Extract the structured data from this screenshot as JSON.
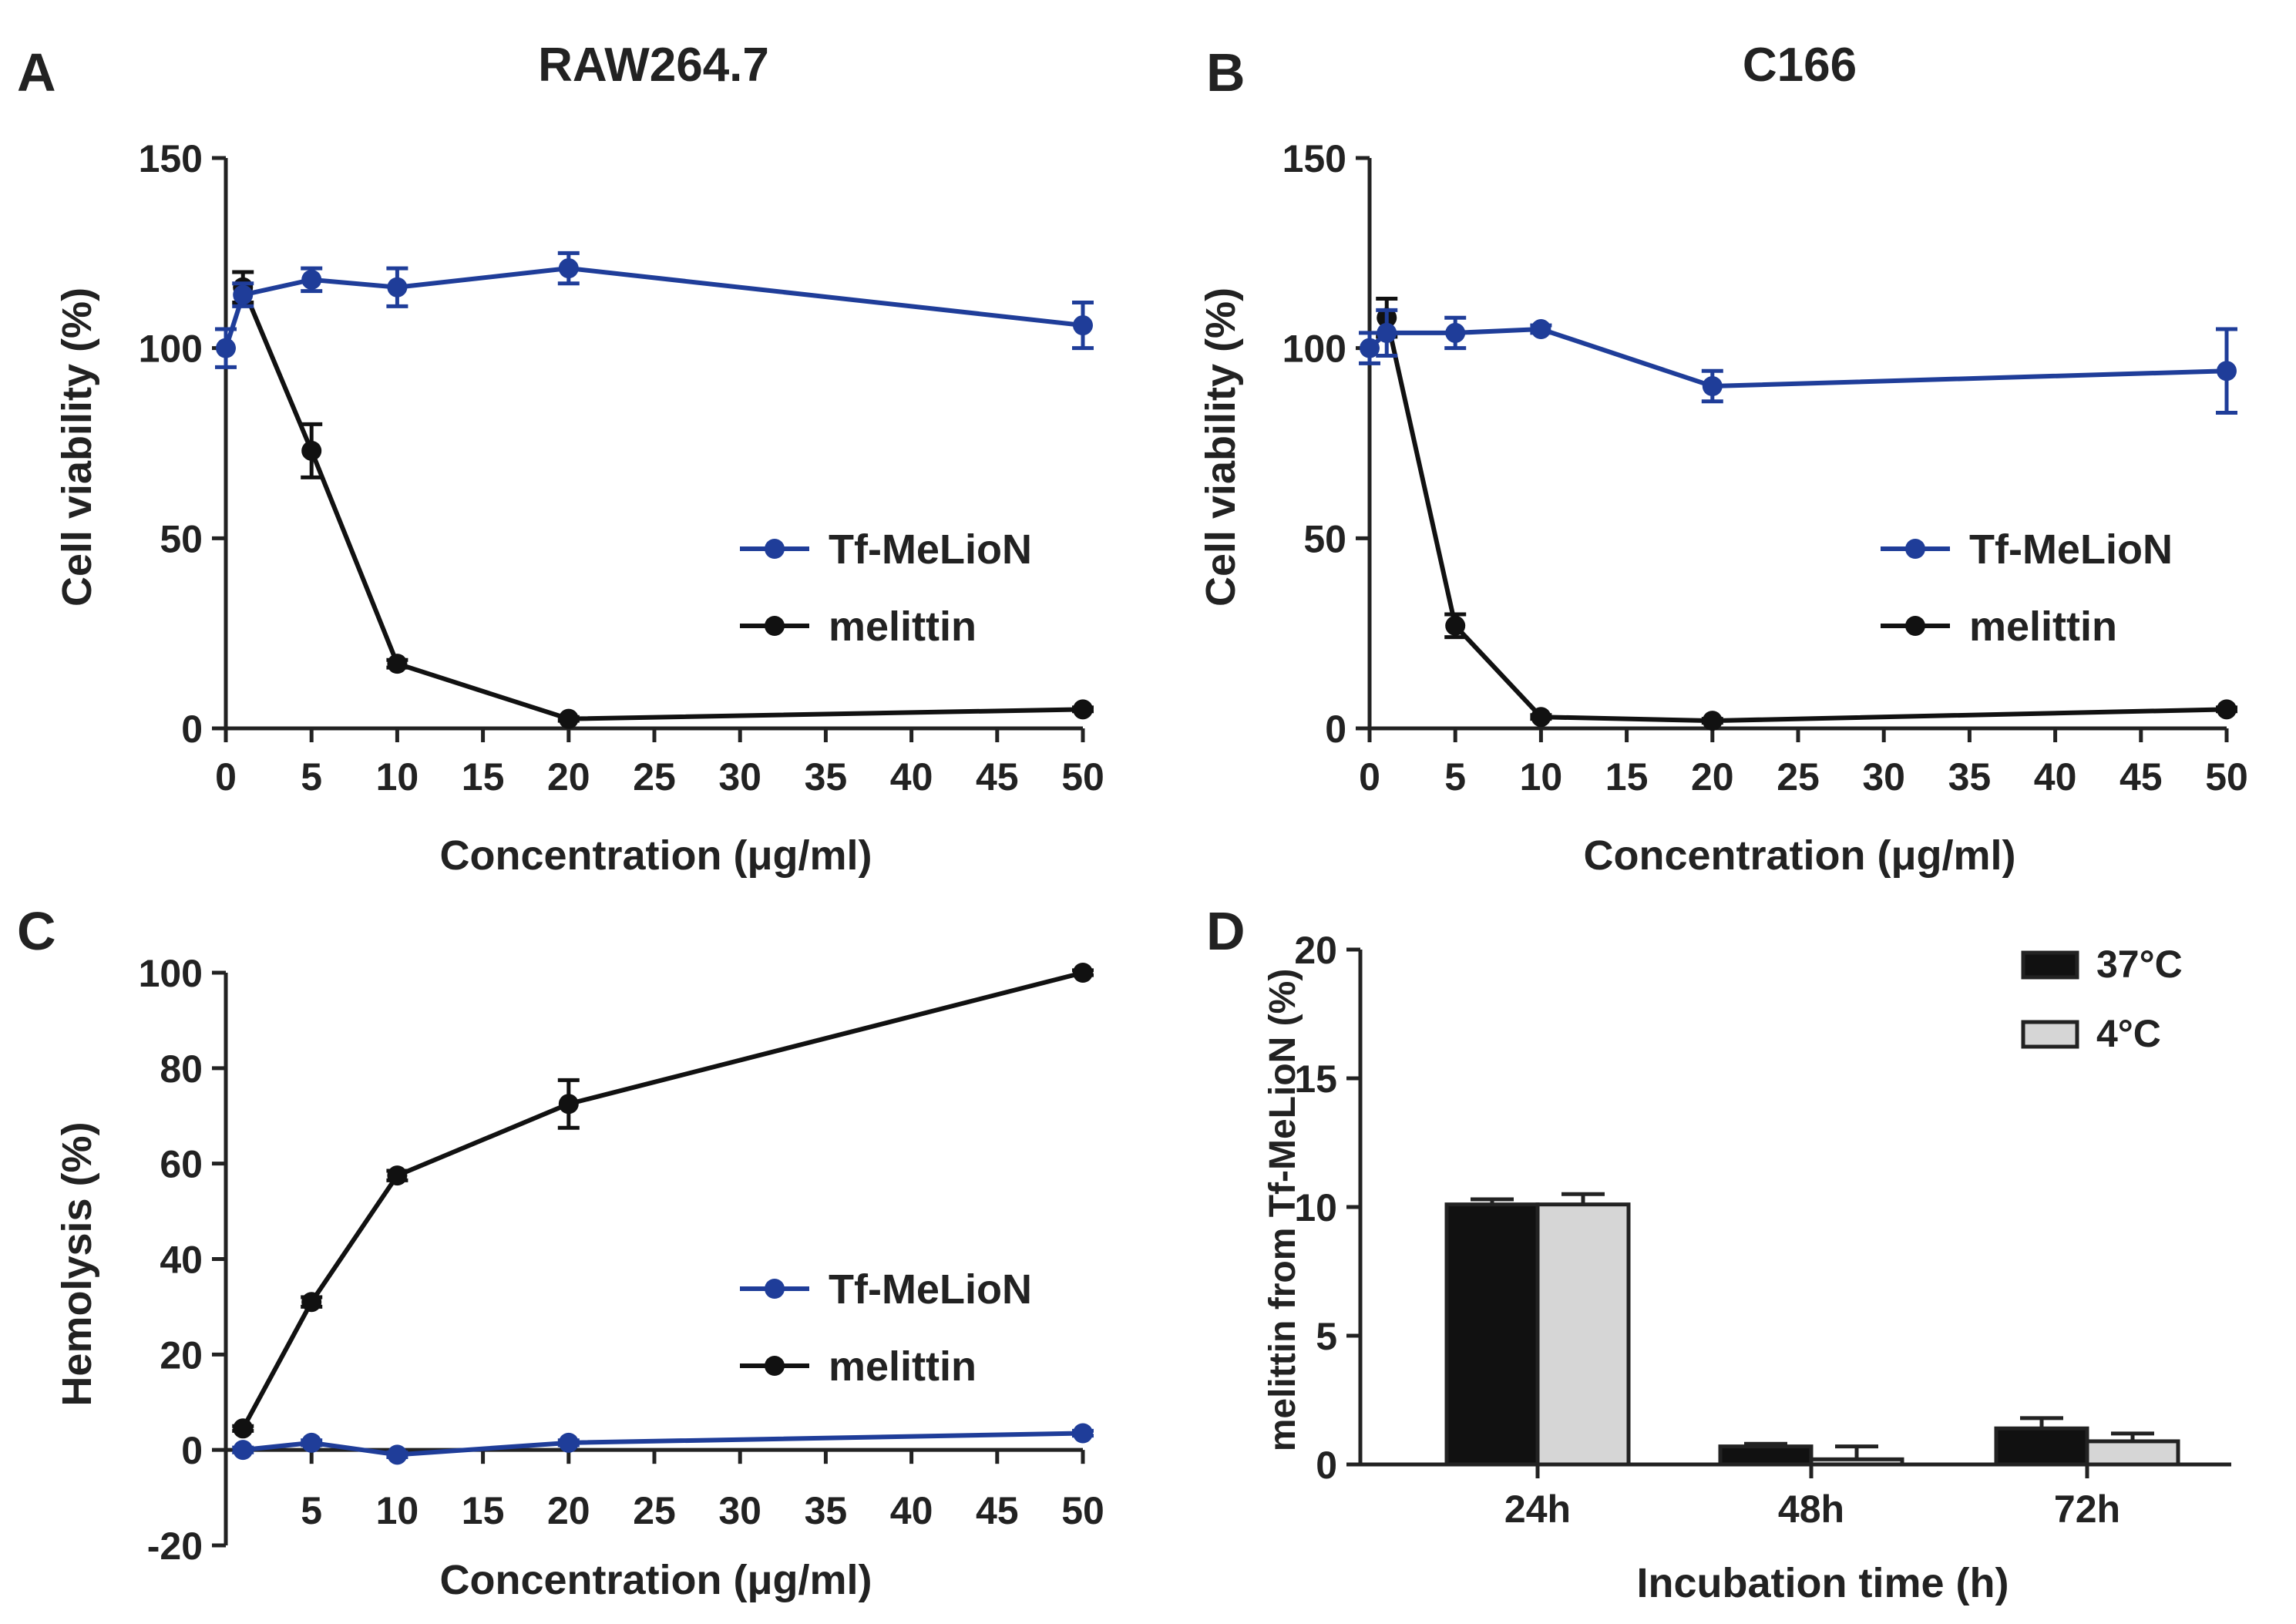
{
  "panel_labels": [
    "A",
    "B",
    "C",
    "D"
  ],
  "colors": {
    "blue": "#1f3d99",
    "black": "#111111",
    "grey_bar": "#d6d6d6",
    "axis": "#222222"
  },
  "chart_data": [
    {
      "type": "line",
      "title": "RAW264.7",
      "xlabel": "Concentration (μg/ml)",
      "ylabel": "Cell viability (%)",
      "xlim": [
        0,
        50
      ],
      "ylim": [
        0,
        150
      ],
      "xticks": [
        "0",
        "5",
        "10",
        "15",
        "20",
        "25",
        "30",
        "35",
        "40",
        "45",
        "50"
      ],
      "yticks": [
        "0",
        "50",
        "100",
        "150"
      ],
      "legend": "right",
      "series": [
        {
          "name": "Tf-MeLioN",
          "color": "#1f3d99",
          "x": [
            0,
            1,
            5,
            10,
            20,
            50
          ],
          "y": [
            100,
            114,
            118,
            116,
            121,
            106
          ],
          "err": [
            5,
            3,
            3,
            5,
            4,
            6
          ]
        },
        {
          "name": "melittin",
          "color": "#111111",
          "x": [
            1,
            5,
            10,
            20,
            50
          ],
          "y": [
            116,
            73,
            17,
            2.5,
            5
          ],
          "err": [
            4,
            7,
            1,
            0.5,
            0.5
          ]
        }
      ]
    },
    {
      "type": "line",
      "title": "C166",
      "xlabel": "Concentration (μg/ml)",
      "ylabel": "Cell viability (%)",
      "xlim": [
        0,
        50
      ],
      "ylim": [
        0,
        150
      ],
      "xticks": [
        "0",
        "5",
        "10",
        "15",
        "20",
        "25",
        "30",
        "35",
        "40",
        "45",
        "50"
      ],
      "yticks": [
        "0",
        "50",
        "100",
        "150"
      ],
      "legend": "right",
      "series": [
        {
          "name": "Tf-MeLioN",
          "color": "#1f3d99",
          "x": [
            0,
            1,
            5,
            10,
            20,
            50
          ],
          "y": [
            100,
            104,
            104,
            105,
            90,
            94
          ],
          "err": [
            4,
            6,
            4,
            1,
            4,
            11
          ]
        },
        {
          "name": "melittin",
          "color": "#111111",
          "x": [
            1,
            5,
            10,
            20,
            50
          ],
          "y": [
            108,
            27,
            3,
            2,
            5
          ],
          "err": [
            5,
            3,
            0.5,
            0.5,
            0.5
          ]
        }
      ]
    },
    {
      "type": "line",
      "title": "",
      "xlabel": "Concentration (μg/ml)",
      "ylabel": "Hemolysis (%)",
      "xlim": [
        0,
        50
      ],
      "ylim": [
        -20,
        100
      ],
      "xticks": [
        "5",
        "10",
        "15",
        "20",
        "25",
        "30",
        "35",
        "40",
        "45",
        "50"
      ],
      "yticks": [
        "-20",
        "0",
        "20",
        "40",
        "60",
        "80",
        "100"
      ],
      "legend": "right",
      "series": [
        {
          "name": "Tf-MeLioN",
          "color": "#1f3d99",
          "x": [
            1,
            5,
            10,
            20,
            50
          ],
          "y": [
            0,
            1.5,
            -1,
            1.5,
            3.5
          ],
          "err": [
            0.5,
            0.5,
            0.5,
            0.5,
            0.5
          ]
        },
        {
          "name": "melittin",
          "color": "#111111",
          "x": [
            1,
            5,
            10,
            20,
            50
          ],
          "y": [
            4.5,
            31,
            57.5,
            72.5,
            100
          ],
          "err": [
            0.5,
            1,
            1,
            5,
            0.5
          ]
        }
      ]
    },
    {
      "type": "bar",
      "title": "",
      "xlabel": "Incubation time  (h)",
      "ylabel": "melittin from Tf-MeLioN (%)",
      "ylim": [
        0,
        20
      ],
      "yticks": [
        "0",
        "5",
        "10",
        "15",
        "20"
      ],
      "categories": [
        "24h",
        "48h",
        "72h"
      ],
      "legend": "top-right",
      "series": [
        {
          "name": "37°C",
          "color": "#111111",
          "values": [
            10.1,
            0.7,
            1.4
          ],
          "err": [
            0.2,
            0.1,
            0.4
          ]
        },
        {
          "name": "4°C",
          "color": "#d6d6d6",
          "values": [
            10.1,
            0.2,
            0.9
          ],
          "err": [
            0.4,
            0.5,
            0.3
          ]
        }
      ]
    }
  ]
}
